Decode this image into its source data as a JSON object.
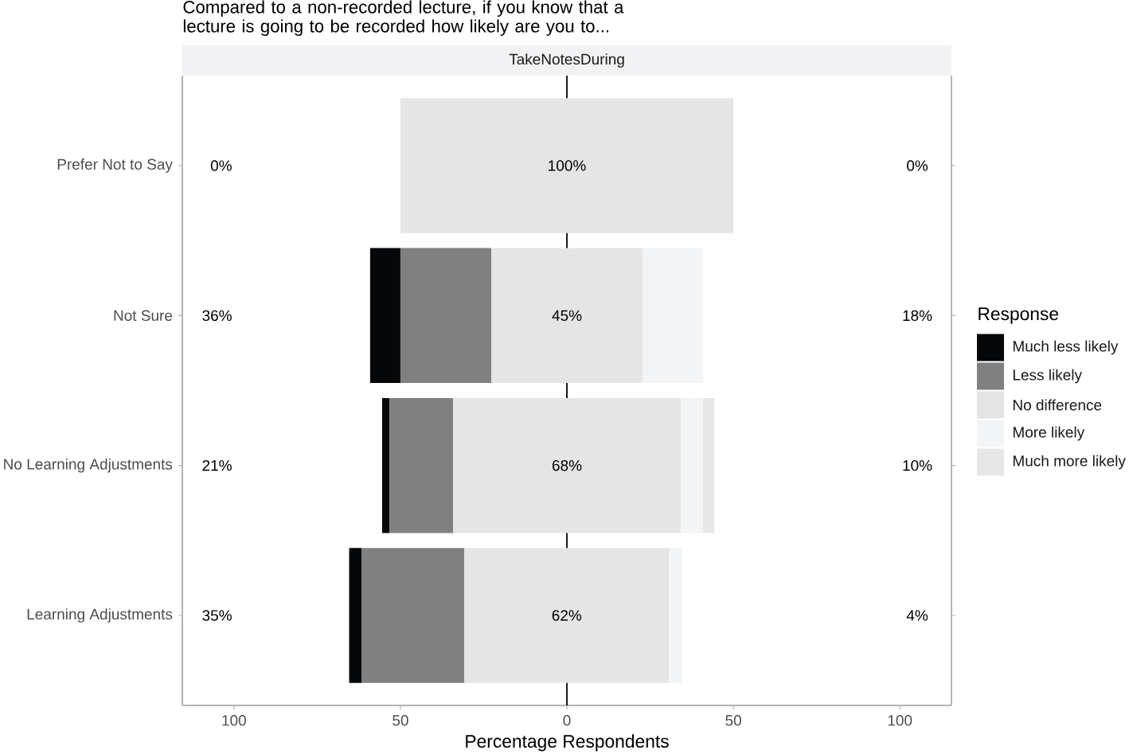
{
  "chart_data": {
    "type": "bar",
    "orientation": "horizontal",
    "title": "Compared to a non-recorded lecture, if you know that a lecture is going to be recorded how likely are you to...",
    "subtitle": "TakeNotesDuring",
    "xlabel": "Percentage Respondents",
    "legend_title": "Response",
    "legend": "right",
    "categories": [
      "Prefer Not to Say",
      "Not Sure",
      "No Learning Adjustments",
      "Learning Adjustments"
    ],
    "series": [
      {
        "name": "Much less likely",
        "color": "#060708",
        "values": [
          0,
          9.1,
          2.2,
          3.8
        ],
        "base": [
          null,
          -59.1,
          -55.5,
          -65.4
        ]
      },
      {
        "name": "Less likely",
        "color": "#7f807f",
        "values": [
          0,
          27.3,
          19.1,
          30.8
        ],
        "base": [
          null,
          -50,
          -53.3,
          -61.6
        ]
      },
      {
        "name": "No difference",
        "color": "#e5e5e5",
        "values": [
          100,
          45.4,
          68.4,
          61.5
        ],
        "base": [
          -50,
          -22.7,
          -34.2,
          -30.8
        ],
        "value_labels": [
          "100%",
          "45%",
          "68%",
          "62%"
        ]
      },
      {
        "name": "More likely",
        "color": "#f3f4f5",
        "values": [
          0,
          18.2,
          6.7,
          3.8
        ],
        "base": [
          null,
          22.7,
          34.2,
          30.7
        ]
      },
      {
        "name": "Much more likely",
        "color": "#e7e7e7",
        "values": [
          0,
          0,
          3.4,
          0
        ],
        "base": [
          null,
          null,
          40.9,
          null
        ]
      }
    ],
    "xlim": [
      -115.5,
      115.5
    ],
    "xticks": [
      {
        "value": -100,
        "label": "100"
      },
      {
        "value": -50,
        "label": "50"
      },
      0,
      50,
      100
    ],
    "ref_lines": [
      {
        "axis": "x",
        "value": 0,
        "color": "#000000"
      }
    ],
    "annotations": [
      "0%",
      "36%",
      "21%",
      "35%",
      "0%",
      "18%",
      "10%",
      "4%"
    ]
  }
}
